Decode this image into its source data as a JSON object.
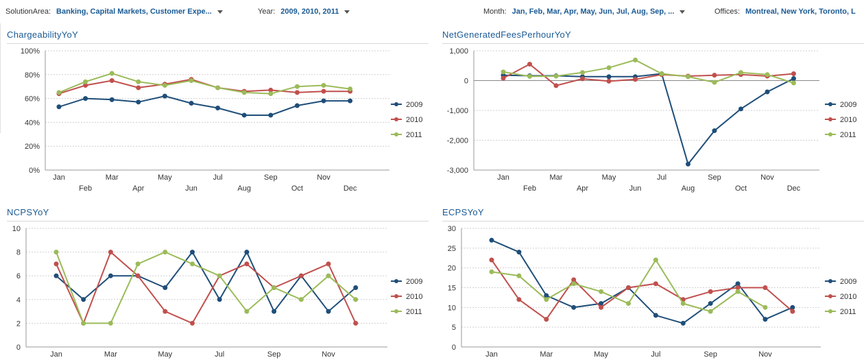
{
  "filters": {
    "solution_area": {
      "label": "SolutionArea:",
      "value": "Banking, Capital Markets, Customer Expe..."
    },
    "year": {
      "label": "Year:",
      "value": "2009, 2010, 2011"
    },
    "month": {
      "label": "Month:",
      "value": "Jan, Feb, Mar, Apr, May, Jun, Jul, Aug, Sep, ..."
    },
    "offices": {
      "label": "Offices:",
      "value": "Montreal, New York, Toronto, L"
    }
  },
  "legend_series_colors": {
    "2009": "#1f4e79",
    "2010": "#c0504d",
    "2011": "#9bbb59"
  },
  "chart_data": [
    {
      "type": "line",
      "title": "ChargeabilityYoY",
      "categories": [
        "Jan",
        "Feb",
        "Mar",
        "Apr",
        "May",
        "Jun",
        "Jul",
        "Aug",
        "Sep",
        "Oct",
        "Nov",
        "Dec"
      ],
      "y_ticks": [
        "0%",
        "20%",
        "40%",
        "60%",
        "80%",
        "100%"
      ],
      "ylim": [
        0,
        100
      ],
      "grid": true,
      "legend": "right",
      "series": [
        {
          "name": "2009",
          "values": [
            53,
            60,
            59,
            57,
            62,
            56,
            52,
            46,
            46,
            54,
            58,
            58
          ]
        },
        {
          "name": "2010",
          "values": [
            64,
            71,
            75,
            69,
            72,
            76,
            69,
            66,
            67,
            65,
            66,
            66
          ]
        },
        {
          "name": "2011",
          "values": [
            65,
            74,
            81,
            74,
            71,
            75,
            69,
            65,
            64,
            70,
            71,
            68
          ]
        }
      ]
    },
    {
      "type": "line",
      "title": "NetGeneratedFeesPerhourYoY",
      "categories": [
        "Jan",
        "Feb",
        "Mar",
        "Apr",
        "May",
        "Jun",
        "Jul",
        "Aug",
        "Sep",
        "Oct",
        "Nov",
        "Dec"
      ],
      "y_ticks": [
        "-3,000",
        "-2,000",
        "-1,000",
        "0",
        "1,000"
      ],
      "ylim": [
        -3000,
        1000
      ],
      "grid": true,
      "legend": "right",
      "series": [
        {
          "name": "2009",
          "values": [
            180,
            160,
            160,
            130,
            130,
            130,
            230,
            -2800,
            -1680,
            -950,
            -380,
            70
          ]
        },
        {
          "name": "2010",
          "values": [
            80,
            550,
            -170,
            60,
            -20,
            40,
            200,
            150,
            180,
            200,
            150,
            230
          ]
        },
        {
          "name": "2011",
          "values": [
            290,
            140,
            150,
            270,
            430,
            690,
            230,
            130,
            -60,
            270,
            200,
            -80
          ]
        }
      ]
    },
    {
      "type": "line",
      "title": "NCPSYoY",
      "categories": [
        "Jan",
        "Feb",
        "Mar",
        "Apr",
        "May",
        "Jun",
        "Jul",
        "Aug",
        "Sep",
        "Oct",
        "Nov",
        "Dec"
      ],
      "y_ticks": [
        "0",
        "2",
        "4",
        "6",
        "8",
        "10"
      ],
      "ylim": [
        0,
        10
      ],
      "grid": true,
      "legend": "right",
      "series": [
        {
          "name": "2009",
          "values": [
            6,
            4,
            6,
            6,
            5,
            8,
            4,
            8,
            3,
            6,
            3,
            5
          ]
        },
        {
          "name": "2010",
          "values": [
            7,
            2,
            8,
            6,
            3,
            2,
            6,
            7,
            5,
            6,
            7,
            2
          ]
        },
        {
          "name": "2011",
          "values": [
            8,
            2,
            2,
            7,
            8,
            7,
            6,
            3,
            5,
            4,
            6,
            4
          ]
        }
      ]
    },
    {
      "type": "line",
      "title": "ECPSYoY",
      "categories": [
        "Jan",
        "Feb",
        "Mar",
        "Apr",
        "May",
        "Jun",
        "Jul",
        "Aug",
        "Sep",
        "Oct",
        "Nov",
        "Dec"
      ],
      "y_ticks": [
        "0",
        "5",
        "10",
        "15",
        "20",
        "25",
        "30"
      ],
      "ylim": [
        0,
        30
      ],
      "grid": true,
      "legend": "right",
      "series": [
        {
          "name": "2009",
          "values": [
            27,
            24,
            13,
            10,
            11,
            15,
            8,
            6,
            11,
            16,
            7,
            10
          ]
        },
        {
          "name": "2010",
          "values": [
            22,
            12,
            7,
            17,
            10,
            15,
            16,
            12,
            14,
            15,
            15,
            9
          ]
        },
        {
          "name": "2011",
          "values": [
            19,
            18,
            12,
            16,
            14,
            11,
            22,
            11,
            9,
            14,
            10,
            null
          ]
        }
      ]
    }
  ]
}
